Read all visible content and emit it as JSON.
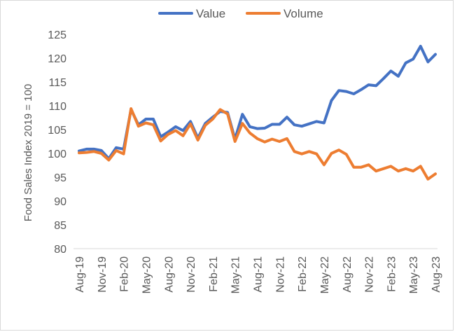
{
  "chart_data": {
    "type": "line",
    "title": "",
    "xlabel": "",
    "ylabel": "Food Sales Index 2019 = 100",
    "ylim": [
      80,
      125
    ],
    "yticks": [
      80,
      85,
      90,
      95,
      100,
      105,
      110,
      115,
      120,
      125
    ],
    "grid": false,
    "legend_position": "top",
    "x_tick_labels": [
      "Aug-19",
      "Nov-19",
      "Feb-20",
      "May-20",
      "Aug-20",
      "Nov-20",
      "Feb-21",
      "May-21",
      "Aug-21",
      "Nov-21",
      "Feb-22",
      "May-22",
      "Aug-22",
      "Nov-22",
      "Feb-23",
      "May-23",
      "Aug-23"
    ],
    "categories": [
      "Aug-19",
      "Sep-19",
      "Oct-19",
      "Nov-19",
      "Dec-19",
      "Jan-20",
      "Feb-20",
      "Mar-20",
      "Apr-20",
      "May-20",
      "Jun-20",
      "Jul-20",
      "Aug-20",
      "Sep-20",
      "Oct-20",
      "Nov-20",
      "Dec-20",
      "Jan-21",
      "Feb-21",
      "Mar-21",
      "Apr-21",
      "May-21",
      "Jun-21",
      "Jul-21",
      "Aug-21",
      "Sep-21",
      "Oct-21",
      "Nov-21",
      "Dec-21",
      "Jan-22",
      "Feb-22",
      "Mar-22",
      "Apr-22",
      "May-22",
      "Jun-22",
      "Jul-22",
      "Aug-22",
      "Sep-22",
      "Oct-22",
      "Nov-22",
      "Dec-22",
      "Jan-23",
      "Feb-23",
      "Mar-23",
      "Apr-23",
      "May-23",
      "Jun-23",
      "Jul-23",
      "Aug-23"
    ],
    "series": [
      {
        "name": "Value",
        "color": "#4472c4",
        "values": [
          100.5,
          100.9,
          100.9,
          100.6,
          98.9,
          101.2,
          100.9,
          109.2,
          106.0,
          107.2,
          107.2,
          103.5,
          104.5,
          105.6,
          104.8,
          106.7,
          103.2,
          106.3,
          107.6,
          108.8,
          108.6,
          103.0,
          108.2,
          105.6,
          105.2,
          105.3,
          106.1,
          106.1,
          107.6,
          106.0,
          105.7,
          106.2,
          106.7,
          106.4,
          111.1,
          113.2,
          113.0,
          112.5,
          113.4,
          114.4,
          114.2,
          115.7,
          117.3,
          116.2,
          119.0,
          119.8,
          122.5,
          119.2,
          120.8
        ]
      },
      {
        "name": "Volume",
        "color": "#ed7d31",
        "values": [
          100.1,
          100.2,
          100.4,
          100.0,
          98.6,
          100.6,
          99.9,
          109.4,
          105.7,
          106.4,
          106.0,
          102.6,
          104.0,
          104.8,
          103.7,
          106.2,
          102.8,
          105.9,
          107.2,
          109.2,
          108.3,
          102.5,
          106.3,
          104.3,
          103.1,
          102.4,
          103.0,
          102.5,
          103.1,
          100.4,
          99.9,
          100.4,
          99.9,
          97.6,
          100.0,
          100.7,
          99.8,
          97.1,
          97.1,
          97.6,
          96.3,
          96.8,
          97.3,
          96.3,
          96.8,
          96.3,
          97.3,
          94.6,
          95.7
        ]
      }
    ]
  }
}
